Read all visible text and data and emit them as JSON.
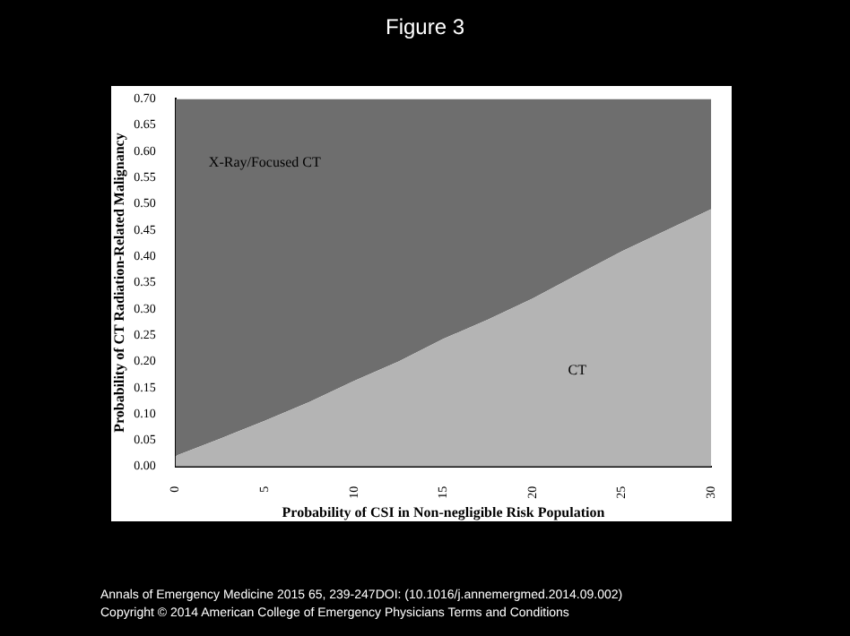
{
  "chart_data": {
    "type": "area",
    "title": "Figure 3",
    "xlabel": "Probability of CSI in Non-negligible Risk Population",
    "ylabel": "Probability of CT Radiation-Related Malignancy",
    "stacked": true,
    "x": [
      0,
      2.5,
      5,
      7.5,
      10,
      12.5,
      15,
      17.5,
      20,
      22.5,
      25,
      27.5,
      30
    ],
    "series": [
      {
        "name": "CT",
        "color": "#b4b4b4",
        "values": [
          0.02,
          0.053,
          0.087,
          0.123,
          0.163,
          0.2,
          0.243,
          0.28,
          0.32,
          0.365,
          0.41,
          0.45,
          0.49
        ]
      },
      {
        "name": "X-Ray/Focused CT",
        "color": "#6e6e6e",
        "values": [
          0.68,
          0.647,
          0.613,
          0.577,
          0.537,
          0.5,
          0.457,
          0.42,
          0.38,
          0.335,
          0.29,
          0.25,
          0.21
        ]
      }
    ],
    "xlim": [
      0,
      30
    ],
    "xticks": [
      0,
      5,
      10,
      15,
      20,
      25,
      30
    ],
    "ylim": [
      0,
      0.7
    ],
    "yticks": [
      {
        "value": 0,
        "label": "0.00"
      },
      {
        "value": 0.05,
        "label": "0.05"
      },
      {
        "value": 0.1,
        "label": "0.10"
      },
      {
        "value": 0.15,
        "label": "0.15"
      },
      {
        "value": 0.2,
        "label": "0.20"
      },
      {
        "value": 0.25,
        "label": "0.25"
      },
      {
        "value": 0.3,
        "label": "0.30"
      },
      {
        "value": 0.35,
        "label": "0.35"
      },
      {
        "value": 0.4,
        "label": "0.40"
      },
      {
        "value": 0.45,
        "label": "0.45"
      },
      {
        "value": 0.5,
        "label": "0.50"
      },
      {
        "value": 0.55,
        "label": "0.55"
      },
      {
        "value": 0.6,
        "label": "0.60"
      },
      {
        "value": 0.65,
        "label": "0.65"
      },
      {
        "value": 0.7,
        "label": "0.70"
      }
    ],
    "grid": false,
    "legend": false,
    "annotations": [
      "Annals of Emergency Medicine 2015 65, 239-247DOI: (10.1016/j.annemergmed.2014.09.002)",
      "Copyright © 2014 American College of Emergency Physicians Terms and Conditions"
    ]
  }
}
